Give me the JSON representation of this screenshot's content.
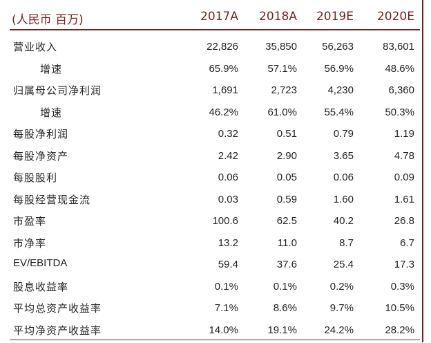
{
  "table": {
    "unit_label": "(人民币 百万)",
    "years": [
      "2017A",
      "2018A",
      "2019E",
      "2020E"
    ],
    "rows": [
      {
        "label": "营业收入",
        "values": [
          "22,826",
          "35,850",
          "56,263",
          "83,601"
        ]
      },
      {
        "label": "增速",
        "values": [
          "65.9%",
          "57.1%",
          "56.9%",
          "48.6%"
        ],
        "indent": true
      },
      {
        "label": "归属母公司净利润",
        "values": [
          "1,691",
          "2,723",
          "4,230",
          "6,360"
        ]
      },
      {
        "label": "增速",
        "values": [
          "46.2%",
          "61.0%",
          "55.4%",
          "50.3%"
        ],
        "indent": true
      },
      {
        "label": "每股净利润",
        "values": [
          "0.32",
          "0.51",
          "0.79",
          "1.19"
        ]
      },
      {
        "label": "每股净资产",
        "values": [
          "2.42",
          "2.90",
          "3.65",
          "4.78"
        ]
      },
      {
        "label": "每股股利",
        "values": [
          "0.06",
          "0.05",
          "0.06",
          "0.09"
        ]
      },
      {
        "label": "每股经营现金流",
        "values": [
          "0.03",
          "0.59",
          "1.60",
          "1.61"
        ]
      },
      {
        "label": "市盈率",
        "values": [
          "100.6",
          "62.5",
          "40.2",
          "26.8"
        ]
      },
      {
        "label": "市净率",
        "values": [
          "13.2",
          "11.0",
          "8.7",
          "6.7"
        ]
      },
      {
        "label": "EV/EBITDA",
        "values": [
          "59.4",
          "37.6",
          "25.4",
          "17.3"
        ]
      },
      {
        "label": "股息收益率",
        "values": [
          "0.1%",
          "0.1%",
          "0.2%",
          "0.3%"
        ]
      },
      {
        "label": "平均总资产收益率",
        "values": [
          "7.1%",
          "8.6%",
          "9.7%",
          "10.5%"
        ]
      },
      {
        "label": "平均净资产收益率",
        "values": [
          "14.0%",
          "19.1%",
          "24.2%",
          "28.2%"
        ]
      }
    ]
  },
  "colors": {
    "accent": "#7a1f1f",
    "text": "#222222"
  }
}
